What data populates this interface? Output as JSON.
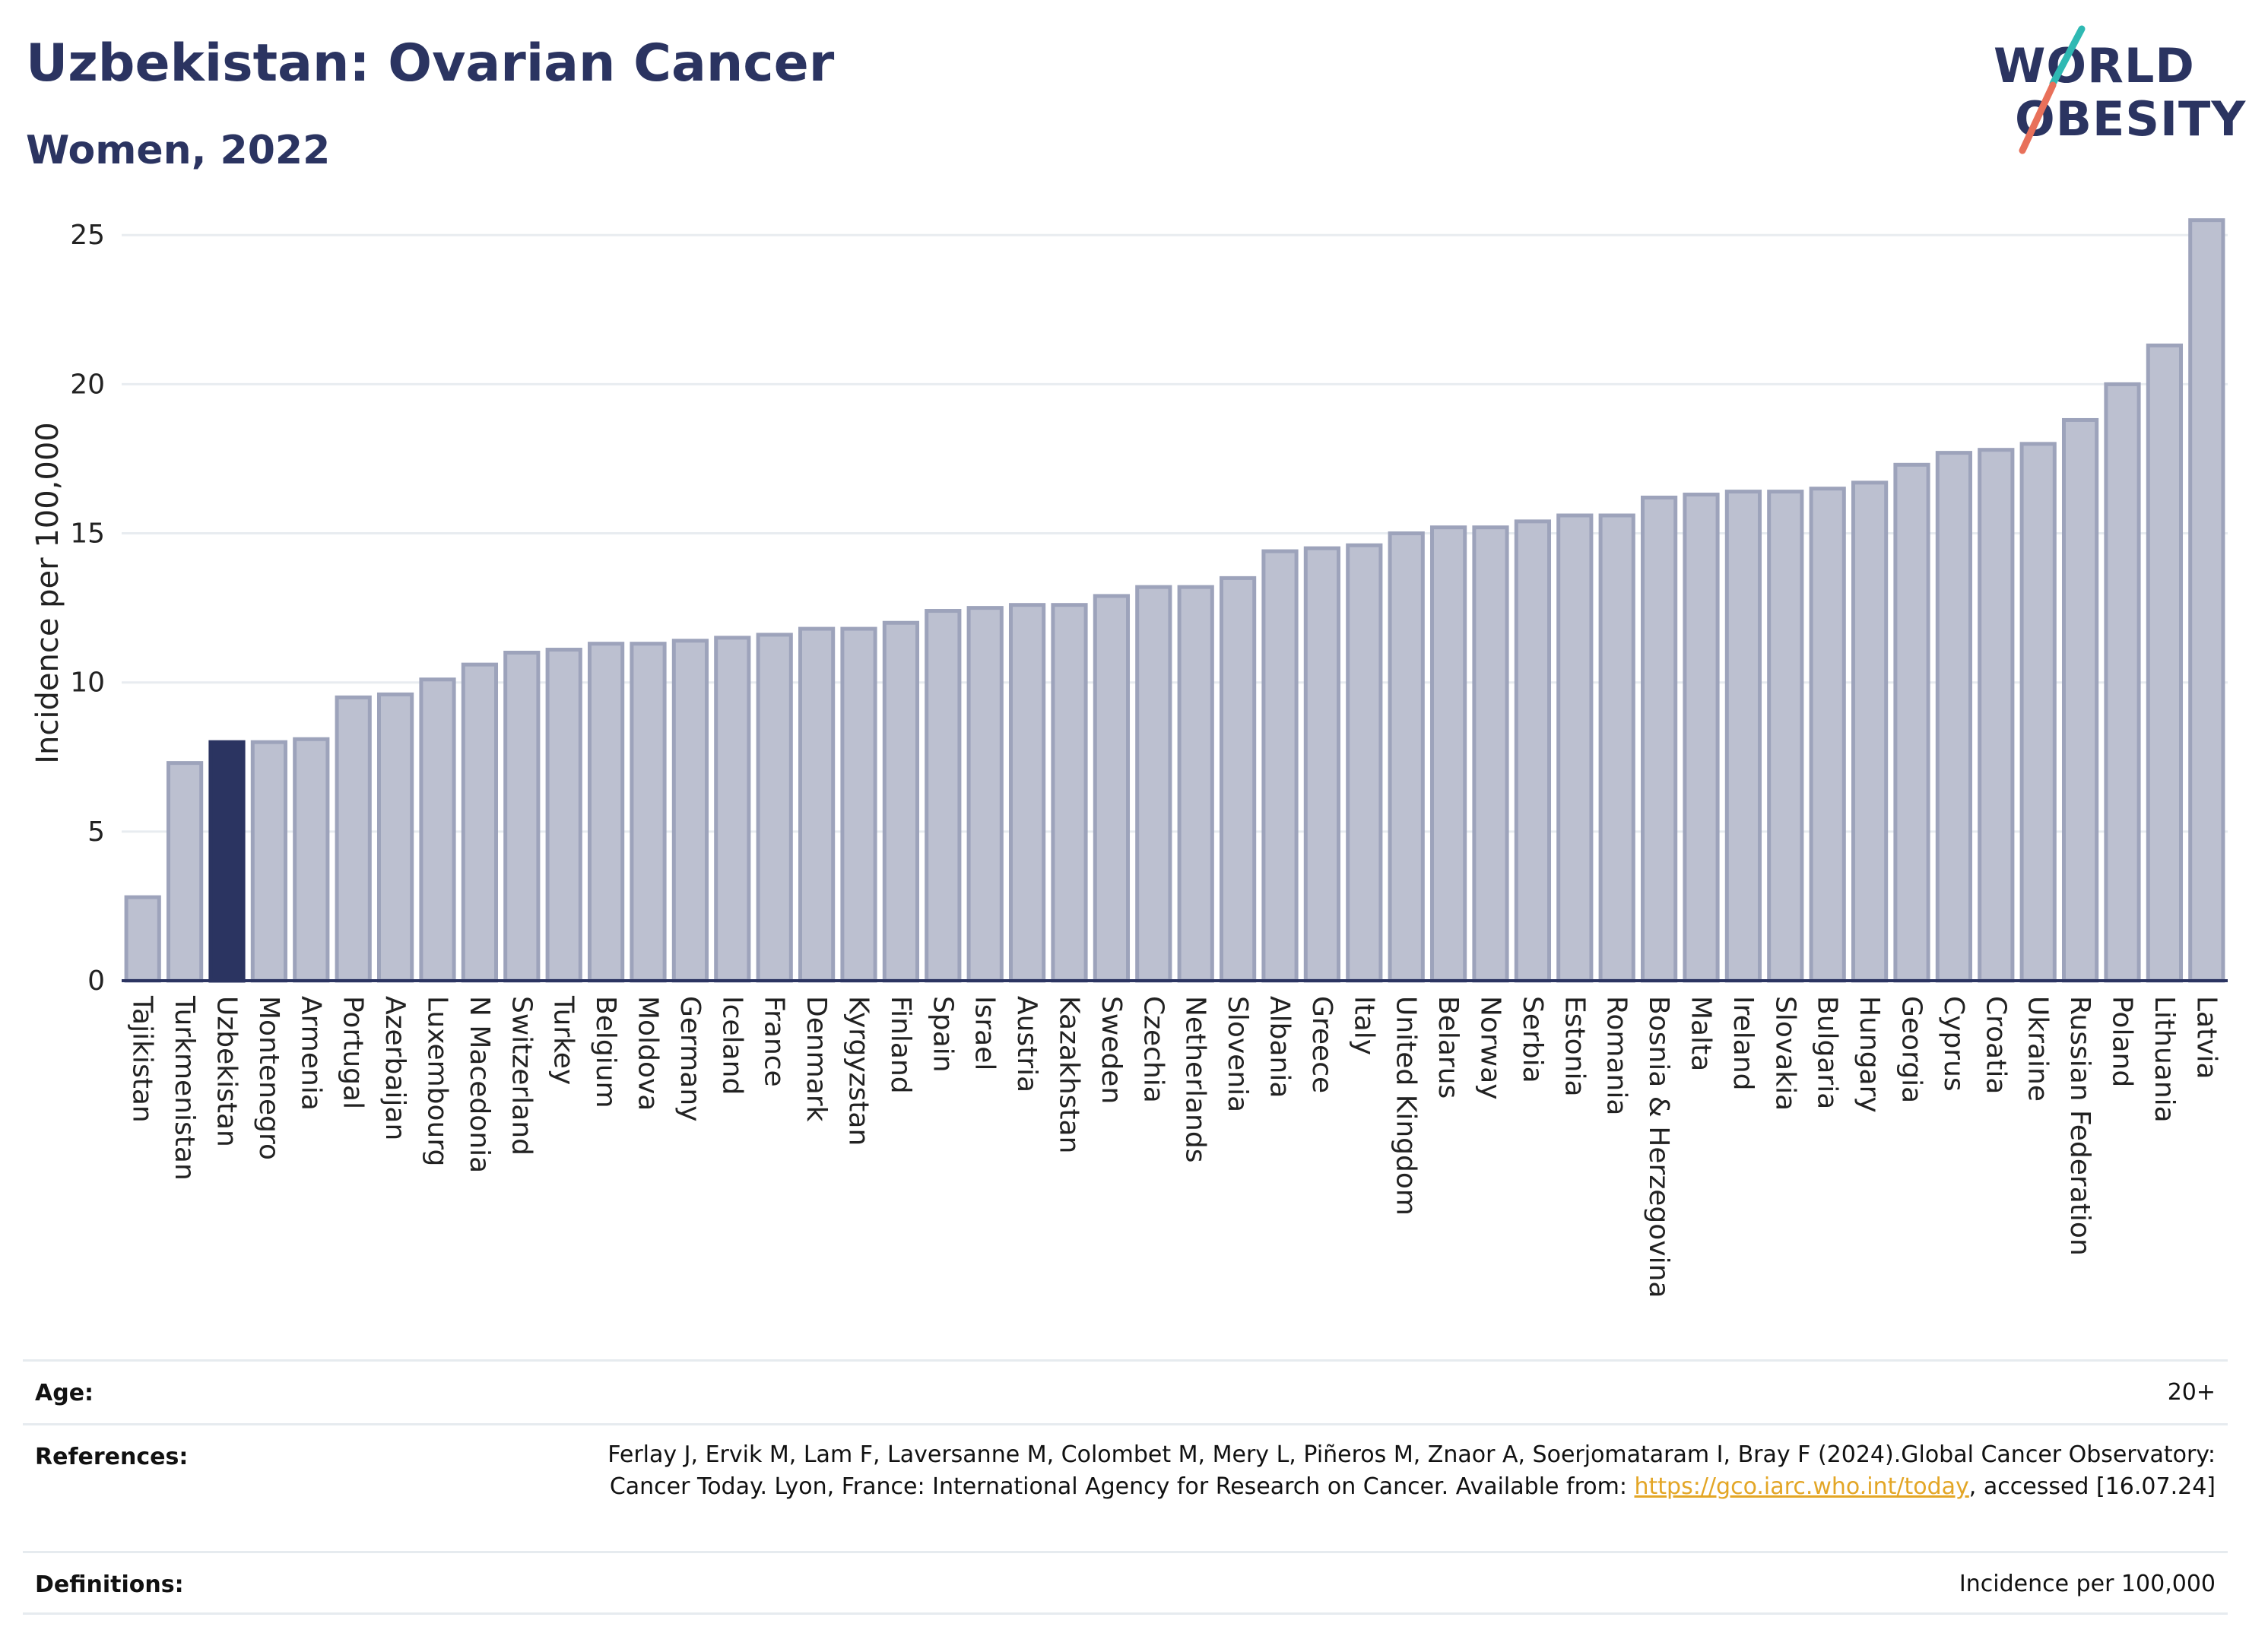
{
  "header": {
    "title": "Uzbekistan: Ovarian Cancer",
    "subtitle": "Women, 2022"
  },
  "logo": {
    "line1": "WORLD",
    "line2": "OBESITY",
    "colors": {
      "text": "#2b3461",
      "slash_top": "#2fb9b3",
      "slash_bottom": "#e8705a"
    }
  },
  "chart_data": {
    "type": "bar",
    "ylabel": "Incidence per 100,000",
    "ylim": [
      0,
      26
    ],
    "yticks": [
      0,
      5,
      10,
      15,
      20,
      25
    ],
    "grid": true,
    "highlight": "Uzbekistan",
    "colors": {
      "bar": "#bcc0d0",
      "bar_border": "#9da3bb",
      "highlight": "#2b3461"
    },
    "categories": [
      "Tajikistan",
      "Turkmenistan",
      "Uzbekistan",
      "Montenegro",
      "Armenia",
      "Portugal",
      "Azerbaijan",
      "Luxembourg",
      "N Macedonia",
      "Switzerland",
      "Turkey",
      "Belgium",
      "Moldova",
      "Germany",
      "Iceland",
      "France",
      "Denmark",
      "Kyrgyzstan",
      "Finland",
      "Spain",
      "Israel",
      "Austria",
      "Kazakhstan",
      "Sweden",
      "Czechia",
      "Netherlands",
      "Slovenia",
      "Albania",
      "Greece",
      "Italy",
      "United Kingdom",
      "Belarus",
      "Norway",
      "Serbia",
      "Estonia",
      "Romania",
      "Bosnia & Herzegovina",
      "Malta",
      "Ireland",
      "Slovakia",
      "Bulgaria",
      "Hungary",
      "Georgia",
      "Cyprus",
      "Croatia",
      "Ukraine",
      "Russian Federation",
      "Poland",
      "Lithuania",
      "Latvia"
    ],
    "values": [
      2.8,
      7.3,
      8.0,
      8.0,
      8.1,
      9.5,
      9.6,
      10.1,
      10.6,
      11.0,
      11.1,
      11.3,
      11.3,
      11.4,
      11.5,
      11.6,
      11.8,
      11.8,
      12.0,
      12.4,
      12.5,
      12.6,
      12.6,
      12.9,
      13.2,
      13.2,
      13.5,
      14.4,
      14.5,
      14.6,
      15.0,
      15.2,
      15.2,
      15.4,
      15.6,
      15.6,
      16.2,
      16.3,
      16.4,
      16.4,
      16.5,
      16.7,
      17.3,
      17.7,
      17.8,
      18.0,
      18.8,
      20.0,
      21.3,
      25.5
    ]
  },
  "info": {
    "age_label": "Age:",
    "age_value": "20+",
    "references_label": "References:",
    "references_text": "Ferlay J, Ervik M, Lam F, Laversanne M, Colombet M, Mery L, Piñeros M, Znaor A, Soerjomataram I, Bray F (2024).Global Cancer Observatory: Cancer Today. Lyon, France: International Agency for Research on Cancer. Available from:",
    "references_link": "https://gco.iarc.who.int/today",
    "references_suffix": ", accessed [16.07.24]",
    "definitions_label": "Definitions:",
    "definitions_value": "Incidence per 100,000"
  }
}
